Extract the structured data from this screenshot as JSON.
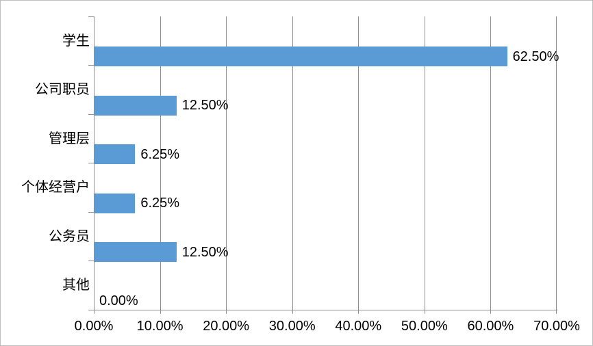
{
  "chart_data": {
    "type": "bar",
    "orientation": "horizontal",
    "categories": [
      "学生",
      "公司职员",
      "管理层",
      "个体经营户",
      "公务员",
      "其他"
    ],
    "values": [
      62.5,
      12.5,
      6.25,
      6.25,
      12.5,
      0
    ],
    "data_labels": [
      "62.50%",
      "12.50%",
      "6.25%",
      "6.25%",
      "12.50%",
      "0.00%"
    ],
    "x_axis": {
      "min": 0,
      "max": 70,
      "step": 10,
      "tick_labels": [
        "0.00%",
        "10.00%",
        "20.00%",
        "30.00%",
        "40.00%",
        "50.00%",
        "60.00%",
        "70.00%"
      ]
    },
    "legend": "none",
    "grid": "vertical",
    "colors": {
      "bar": "#5B9BD5",
      "gridline": "#8E8E8E",
      "axis": "#8E8E8E",
      "text": "#000000",
      "background": "#FFFFFF",
      "border": "#BFBFBF"
    }
  }
}
